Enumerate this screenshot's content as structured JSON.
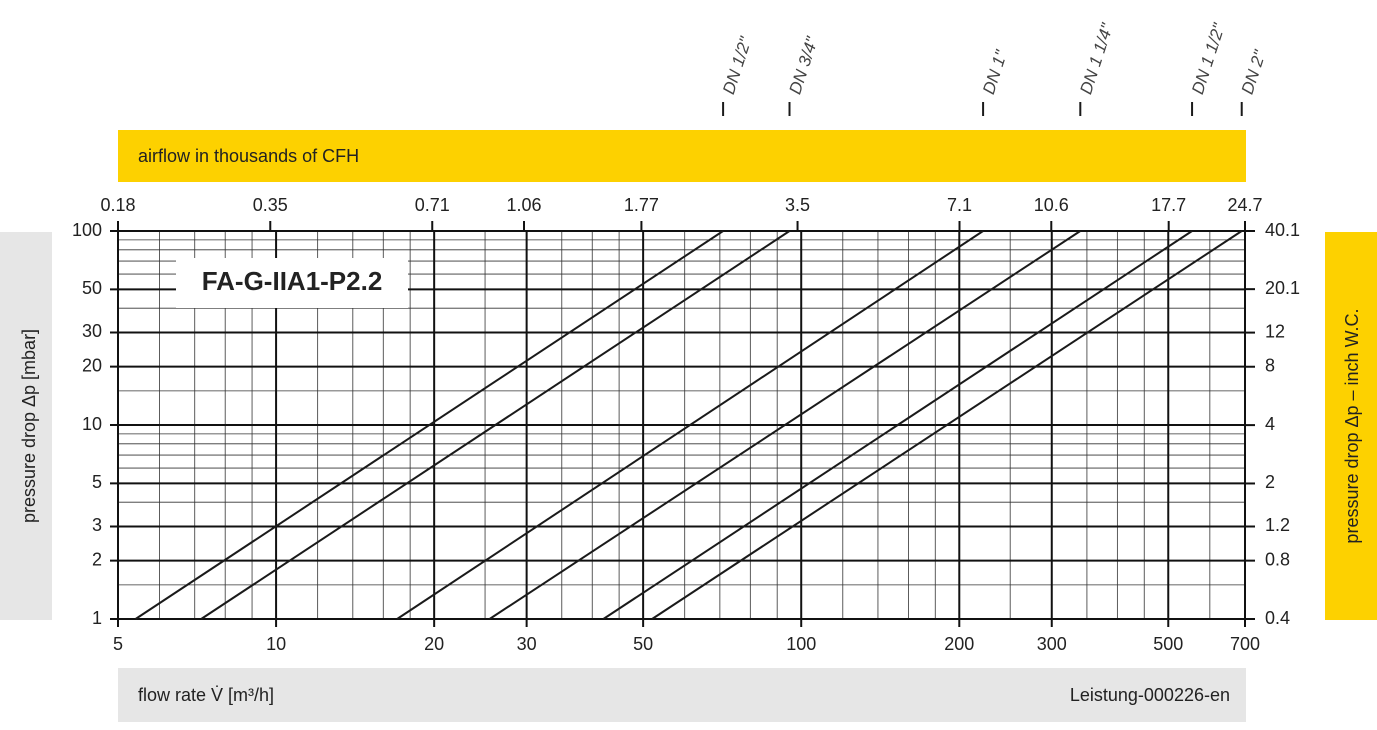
{
  "chart_data": {
    "type": "line",
    "title": "FA-G-IIA1-P2.2",
    "xlabel": "flow rate V̇ [m³/h]",
    "ylabel": "pressure drop Δp [mbar]",
    "x2label": "airflow in thousands of CFH",
    "y2label": "pressure drop Δp – inch W.C.",
    "note": "Leistung-000226-en",
    "xscale": "log",
    "yscale": "log",
    "grid": true,
    "xlim": [
      5,
      700
    ],
    "xticks": [
      5,
      10,
      20,
      30,
      50,
      100,
      200,
      300,
      500,
      700
    ],
    "ylim": [
      1,
      100
    ],
    "yticks": [
      1,
      2,
      3,
      5,
      10,
      20,
      30,
      50,
      100
    ],
    "x2lim": [
      0.18,
      24.7
    ],
    "x2ticks": [
      0.18,
      0.35,
      0.71,
      1.06,
      1.77,
      3.5,
      7.1,
      10.6,
      17.7,
      24.7
    ],
    "y2lim": [
      0.4,
      40.1
    ],
    "y2ticks": [
      0.4,
      0.8,
      1.2,
      2,
      4,
      8,
      12,
      20.1,
      40.1
    ],
    "xminor": [
      6,
      7,
      8,
      9,
      12,
      14,
      16,
      18,
      25,
      35,
      40,
      45,
      60,
      70,
      80,
      90,
      120,
      140,
      160,
      180,
      250,
      350,
      400,
      450,
      600
    ],
    "yminor": [
      1.5,
      4,
      6,
      7,
      8,
      9,
      15,
      40,
      60,
      70,
      80,
      90
    ],
    "series": [
      {
        "name": "DN 1/2\"",
        "color": "#1a1a1a",
        "x": [
          5.4,
          71
        ],
        "values": [
          1,
          100
        ]
      },
      {
        "name": "DN 3/4\"",
        "color": "#1a1a1a",
        "x": [
          7.2,
          95
        ],
        "values": [
          1,
          100
        ]
      },
      {
        "name": "DN 1\"",
        "color": "#1a1a1a",
        "x": [
          17,
          222
        ],
        "values": [
          1,
          100
        ]
      },
      {
        "name": "DN 1 1/4\"",
        "color": "#1a1a1a",
        "x": [
          25.5,
          340
        ],
        "values": [
          1,
          100
        ]
      },
      {
        "name": "DN 1 1/2\"",
        "color": "#1a1a1a",
        "x": [
          42,
          555
        ],
        "values": [
          1,
          100
        ]
      },
      {
        "name": "DN 2\"",
        "color": "#1a1a1a",
        "x": [
          52,
          690
        ],
        "values": [
          1,
          100
        ]
      }
    ]
  }
}
